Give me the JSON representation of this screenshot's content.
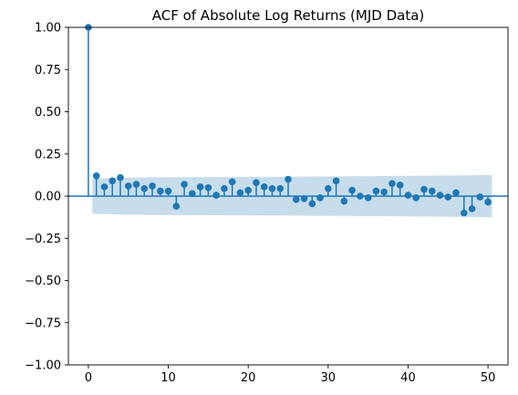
{
  "chart_data": {
    "type": "stem",
    "title": "ACF of Absolute Log Returns (MJD Data)",
    "xlabel": "",
    "ylabel": "",
    "xlim": [
      -2.5,
      52.5
    ],
    "ylim": [
      -1.0,
      1.0
    ],
    "xticks": [
      "0",
      "10",
      "20",
      "30",
      "40",
      "50"
    ],
    "yticks": [
      "−1.00",
      "−0.75",
      "−0.50",
      "−0.25",
      "0.00",
      "0.25",
      "0.50",
      "0.75",
      "1.00"
    ],
    "grid": false,
    "legend": "none",
    "lags": [
      0,
      1,
      2,
      3,
      4,
      5,
      6,
      7,
      8,
      9,
      10,
      11,
      12,
      13,
      14,
      15,
      16,
      17,
      18,
      19,
      20,
      21,
      22,
      23,
      24,
      25,
      26,
      27,
      28,
      29,
      30,
      31,
      32,
      33,
      34,
      35,
      36,
      37,
      38,
      39,
      40,
      41,
      42,
      43,
      44,
      45,
      46,
      47,
      48,
      49,
      50
    ],
    "acf": [
      1.0,
      0.12,
      0.055,
      0.09,
      0.11,
      0.06,
      0.07,
      0.045,
      0.06,
      0.03,
      0.03,
      -0.06,
      0.07,
      0.015,
      0.055,
      0.05,
      0.005,
      0.045,
      0.085,
      0.02,
      0.035,
      0.08,
      0.055,
      0.045,
      0.045,
      0.1,
      -0.02,
      -0.015,
      -0.045,
      -0.01,
      0.045,
      0.09,
      -0.03,
      0.035,
      0.0,
      -0.01,
      0.03,
      0.025,
      0.075,
      0.065,
      0.005,
      -0.01,
      0.04,
      0.03,
      0.005,
      -0.005,
      0.02,
      -0.1,
      -0.075,
      -0.005,
      -0.035
    ],
    "confidence_band": {
      "lags": [
        0.5,
        5,
        10,
        15,
        20,
        25,
        30,
        35,
        40,
        45,
        50.5
      ],
      "upper": [
        0.105,
        0.11,
        0.112,
        0.113,
        0.114,
        0.115,
        0.117,
        0.118,
        0.12,
        0.122,
        0.125
      ],
      "lower": [
        -0.105,
        -0.11,
        -0.112,
        -0.113,
        -0.114,
        -0.115,
        -0.117,
        -0.118,
        -0.12,
        -0.122,
        -0.125
      ]
    },
    "colors": {
      "stem": "#1f77b4",
      "band": "#1f77b4",
      "axis": "#000000"
    }
  }
}
